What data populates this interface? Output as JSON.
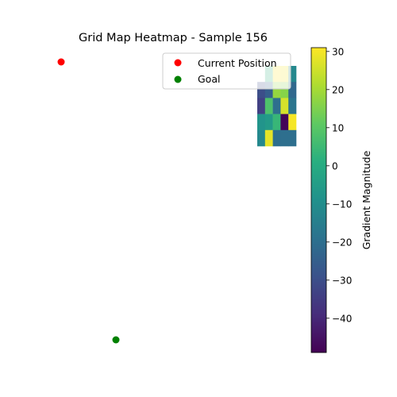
{
  "chart_data": {
    "type": "heatmap",
    "title": "Grid Map Heatmap - Sample 156",
    "axes_visible": false,
    "grid": false,
    "heatmap": {
      "rows": 5,
      "cols": 5,
      "values": [
        [
          null,
          2,
          31,
          30,
          -12
        ],
        [
          -30,
          -25,
          18,
          16,
          -22
        ],
        [
          -34,
          8,
          -20,
          26,
          -18
        ],
        [
          -8,
          -6,
          4,
          -48,
          30
        ],
        [
          -12,
          28,
          -20,
          -20,
          -20
        ]
      ],
      "vmin": -49,
      "vmax": 31,
      "colormap": "viridis"
    },
    "markers": [
      {
        "name": "Current Position",
        "color": "#ff0000"
      },
      {
        "name": "Goal",
        "color": "#008000"
      }
    ],
    "legend": {
      "placement": "top-right"
    },
    "colorbar": {
      "label": "Gradient Magnitude",
      "ticks": [
        "30",
        "20",
        "10",
        "0",
        "−10",
        "−20",
        "−30",
        "−40"
      ],
      "tick_values": [
        30,
        20,
        10,
        0,
        -10,
        -20,
        -30,
        -40
      ],
      "min": -49,
      "max": 31
    }
  }
}
